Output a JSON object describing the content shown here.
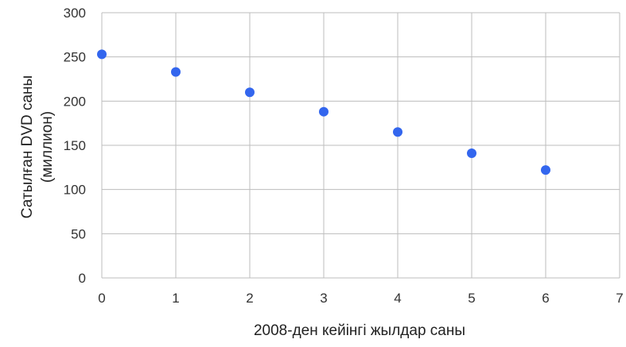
{
  "chart_data": {
    "type": "scatter",
    "title": "",
    "xlabel": "2008-ден кейінгі жылдар саны",
    "ylabel_lines": [
      "Сатылған DVD саны",
      "(миллион)"
    ],
    "xlim": [
      0,
      7
    ],
    "ylim": [
      0,
      300
    ],
    "xticks": [
      "0",
      "1",
      "2",
      "3",
      "4",
      "5",
      "6",
      "7"
    ],
    "yticks": [
      "0",
      "50",
      "100",
      "150",
      "200",
      "250",
      "300"
    ],
    "grid": true,
    "marker_color": "#3366ee",
    "grid_color": "#bdbdbd",
    "series": [
      {
        "x": [
          0,
          1,
          2,
          3,
          4,
          5,
          6
        ],
        "y": [
          253,
          233,
          210,
          188,
          165,
          141,
          122
        ]
      }
    ]
  }
}
